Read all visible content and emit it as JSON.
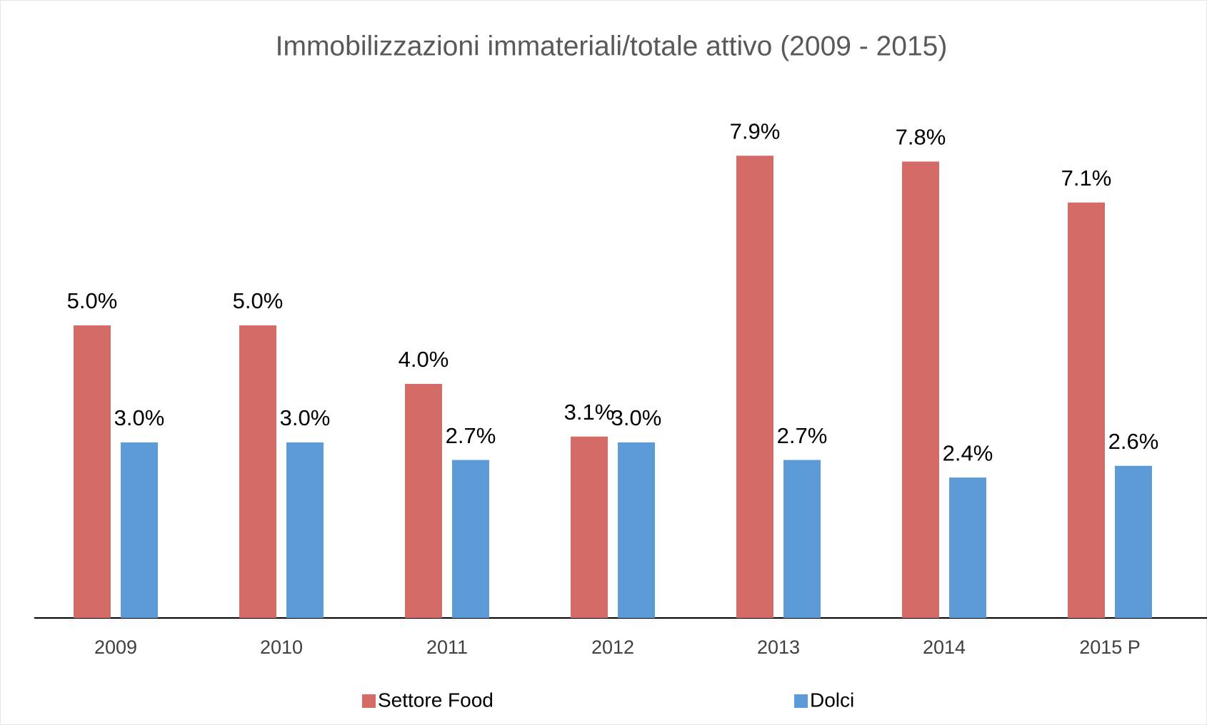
{
  "chart_data": {
    "type": "bar",
    "title": "Immobilizzazioni immateriali/totale attivo (2009 - 2015)",
    "categories": [
      "2009",
      "2010",
      "2011",
      "2012",
      "2013",
      "2014",
      "2015 P"
    ],
    "series": [
      {
        "name": "Settore Food",
        "color": "#d56b67",
        "values": [
          5.0,
          5.0,
          4.0,
          3.1,
          7.9,
          7.8,
          7.1
        ],
        "value_labels": [
          "5.0%",
          "5.0%",
          "4.0%",
          "3.1%",
          "7.9%",
          "7.8%",
          "7.1%"
        ]
      },
      {
        "name": "Dolci",
        "color": "#5d9bd8",
        "values": [
          3.0,
          3.0,
          2.7,
          3.0,
          2.7,
          2.4,
          2.6
        ],
        "value_labels": [
          "3.0%",
          "3.0%",
          "2.7%",
          "3.0%",
          "2.7%",
          "2.4%",
          "2.6%"
        ]
      }
    ],
    "legend": "bottom"
  }
}
